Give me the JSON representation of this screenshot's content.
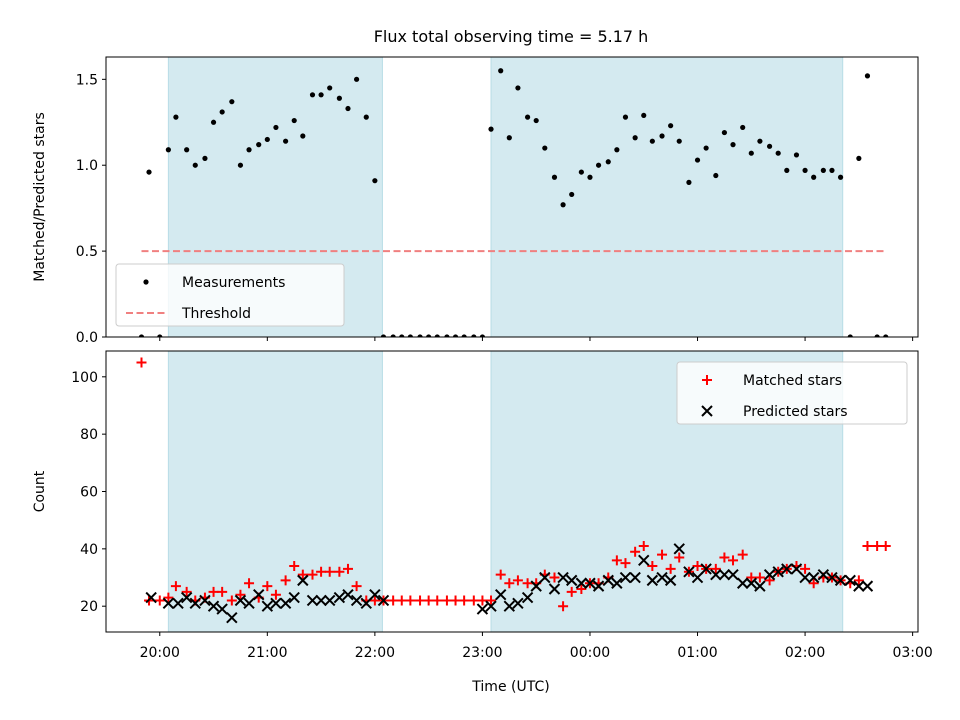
{
  "chart_data": {
    "type": "scatter",
    "title": "Flux total observing time = 5.17 h",
    "xlabel": "Time (UTC)",
    "x_unit": "hours after 20:00 UTC",
    "xlim": [
      -0.5,
      7.05
    ],
    "x_ticks": [
      {
        "label": "20:00",
        "value": 0
      },
      {
        "label": "21:00",
        "value": 1
      },
      {
        "label": "22:00",
        "value": 2
      },
      {
        "label": "23:00",
        "value": 3
      },
      {
        "label": "00:00",
        "value": 4
      },
      {
        "label": "01:00",
        "value": 5
      },
      {
        "label": "02:00",
        "value": 6
      },
      {
        "label": "03:00",
        "value": 7
      }
    ],
    "shaded_intervals": [
      {
        "start": 0.08,
        "end": 2.07
      },
      {
        "start": 3.08,
        "end": 6.35
      }
    ],
    "shade_color": "#d4eaf0",
    "panels": [
      {
        "name": "ratio",
        "ylabel": "Matched/Predicted stars",
        "ylim": [
          0,
          1.63
        ],
        "y_ticks": [
          0.0,
          0.5,
          1.0,
          1.5
        ],
        "y_tick_labels": [
          "0.0",
          "0.5",
          "1.0",
          "1.5"
        ],
        "legend": {
          "position": "lower-left",
          "entries": [
            "Measurements",
            "Threshold"
          ]
        },
        "series": [
          {
            "name": "Measurements",
            "marker": "dot",
            "color": "#000000",
            "x": [
              -0.17,
              -0.1,
              0.0,
              0.08,
              0.15,
              0.25,
              0.33,
              0.42,
              0.5,
              0.58,
              0.67,
              0.75,
              0.83,
              0.92,
              1.0,
              1.08,
              1.17,
              1.25,
              1.33,
              1.42,
              1.5,
              1.58,
              1.67,
              1.75,
              1.83,
              1.92,
              2.0,
              2.08,
              2.17,
              2.25,
              2.33,
              2.42,
              2.5,
              2.58,
              2.67,
              2.75,
              2.83,
              2.92,
              3.0,
              3.08,
              3.17,
              3.25,
              3.33,
              3.42,
              3.5,
              3.58,
              3.67,
              3.75,
              3.83,
              3.92,
              4.0,
              4.08,
              4.17,
              4.25,
              4.33,
              4.42,
              4.5,
              4.58,
              4.67,
              4.75,
              4.83,
              4.92,
              5.0,
              5.08,
              5.17,
              5.25,
              5.33,
              5.42,
              5.5,
              5.58,
              5.67,
              5.75,
              5.83,
              5.92,
              6.0,
              6.08,
              6.17,
              6.25,
              6.33,
              6.42,
              6.5,
              6.58,
              6.67,
              6.75
            ],
            "y": [
              0.0,
              0.96,
              0.0,
              1.09,
              1.28,
              1.09,
              1.0,
              1.04,
              1.25,
              1.31,
              1.37,
              1.0,
              1.09,
              1.12,
              1.15,
              1.22,
              1.14,
              1.26,
              1.17,
              1.41,
              1.41,
              1.45,
              1.39,
              1.33,
              1.5,
              1.28,
              0.91,
              0.0,
              0.0,
              0.0,
              0.0,
              0.0,
              0.0,
              0.0,
              0.0,
              0.0,
              0.0,
              0.0,
              0.0,
              1.21,
              1.55,
              1.16,
              1.45,
              1.28,
              1.26,
              1.1,
              0.93,
              0.77,
              0.83,
              0.96,
              0.93,
              1.0,
              1.02,
              1.09,
              1.28,
              1.16,
              1.29,
              1.14,
              1.17,
              1.23,
              1.14,
              0.9,
              1.03,
              1.1,
              0.94,
              1.19,
              1.12,
              1.22,
              1.07,
              1.14,
              1.11,
              1.07,
              0.97,
              1.06,
              0.97,
              0.93,
              0.97,
              0.97,
              0.93,
              0.0,
              1.04,
              1.52,
              0.0,
              0.0
            ]
          },
          {
            "name": "Threshold",
            "marker": "dashed-line",
            "color": "#f08080",
            "x": [
              -0.17,
              6.75
            ],
            "y": [
              0.5,
              0.5
            ]
          }
        ]
      },
      {
        "name": "count",
        "ylabel": "Count",
        "ylim": [
          11,
          109
        ],
        "y_ticks": [
          20,
          40,
          60,
          80,
          100
        ],
        "y_tick_labels": [
          "20",
          "40",
          "60",
          "80",
          "100"
        ],
        "legend": {
          "position": "top-right",
          "entries": [
            "Matched stars",
            "Predicted stars"
          ]
        },
        "series": [
          {
            "name": "Matched stars",
            "marker": "plus",
            "color": "#ff0000",
            "x": [
              -0.17,
              -0.1,
              0.0,
              0.08,
              0.15,
              0.25,
              0.33,
              0.42,
              0.5,
              0.58,
              0.67,
              0.75,
              0.83,
              0.92,
              1.0,
              1.08,
              1.17,
              1.25,
              1.33,
              1.42,
              1.5,
              1.58,
              1.67,
              1.75,
              1.83,
              1.92,
              2.0,
              2.08,
              2.17,
              2.25,
              2.33,
              2.42,
              2.5,
              2.58,
              2.67,
              2.75,
              2.83,
              2.92,
              3.0,
              3.08,
              3.17,
              3.25,
              3.33,
              3.42,
              3.5,
              3.58,
              3.67,
              3.75,
              3.83,
              3.92,
              4.0,
              4.08,
              4.17,
              4.25,
              4.33,
              4.42,
              4.5,
              4.58,
              4.67,
              4.75,
              4.83,
              4.92,
              5.0,
              5.08,
              5.17,
              5.25,
              5.33,
              5.42,
              5.5,
              5.58,
              5.67,
              5.75,
              5.83,
              5.92,
              6.0,
              6.08,
              6.17,
              6.25,
              6.33,
              6.42,
              6.5,
              6.58,
              6.67,
              6.75
            ],
            "y": [
              105,
              22,
              22,
              23,
              27,
              25,
              22,
              23,
              25,
              25,
              22,
              24,
              28,
              23,
              27,
              24,
              29,
              34,
              31,
              31,
              32,
              32,
              32,
              33,
              27,
              22,
              22,
              22,
              22,
              22,
              22,
              22,
              22,
              22,
              22,
              22,
              22,
              22,
              22,
              22,
              31,
              28,
              29,
              28,
              28,
              31,
              30,
              20,
              25,
              26,
              28,
              28,
              30,
              36,
              35,
              39,
              41,
              34,
              38,
              33,
              37,
              32,
              34,
              33,
              33,
              37,
              36,
              38,
              30,
              30,
              29,
              32,
              33,
              34,
              33,
              28,
              30,
              30,
              29,
              28,
              29,
              41,
              41,
              41
            ]
          },
          {
            "name": "Predicted stars",
            "marker": "x",
            "color": "#000000",
            "x": [
              -0.08,
              0.08,
              0.17,
              0.25,
              0.33,
              0.42,
              0.5,
              0.58,
              0.67,
              0.75,
              0.83,
              0.92,
              1.0,
              1.08,
              1.17,
              1.25,
              1.33,
              1.42,
              1.5,
              1.58,
              1.67,
              1.75,
              1.83,
              1.92,
              2.0,
              2.08,
              3.0,
              3.08,
              3.17,
              3.25,
              3.33,
              3.42,
              3.5,
              3.58,
              3.67,
              3.75,
              3.83,
              3.92,
              4.0,
              4.08,
              4.17,
              4.25,
              4.33,
              4.42,
              4.5,
              4.58,
              4.67,
              4.75,
              4.83,
              4.92,
              5.0,
              5.08,
              5.17,
              5.25,
              5.33,
              5.42,
              5.5,
              5.58,
              5.67,
              5.75,
              5.83,
              5.92,
              6.0,
              6.08,
              6.17,
              6.25,
              6.33,
              6.42,
              6.5,
              6.58
            ],
            "y": [
              23,
              21,
              21,
              23,
              21,
              22,
              20,
              19,
              16,
              22,
              21,
              24,
              20,
              21,
              21,
              23,
              29,
              22,
              22,
              22,
              23,
              24,
              22,
              21,
              24,
              22,
              19,
              20,
              24,
              20,
              21,
              23,
              27,
              30,
              26,
              30,
              29,
              28,
              28,
              27,
              29,
              28,
              30,
              30,
              36,
              29,
              30,
              29,
              40,
              32,
              30,
              33,
              31,
              31,
              31,
              28,
              28,
              27,
              31,
              32,
              33,
              33,
              30,
              30,
              31,
              30,
              29,
              29,
              27,
              27
            ]
          }
        ]
      }
    ]
  }
}
